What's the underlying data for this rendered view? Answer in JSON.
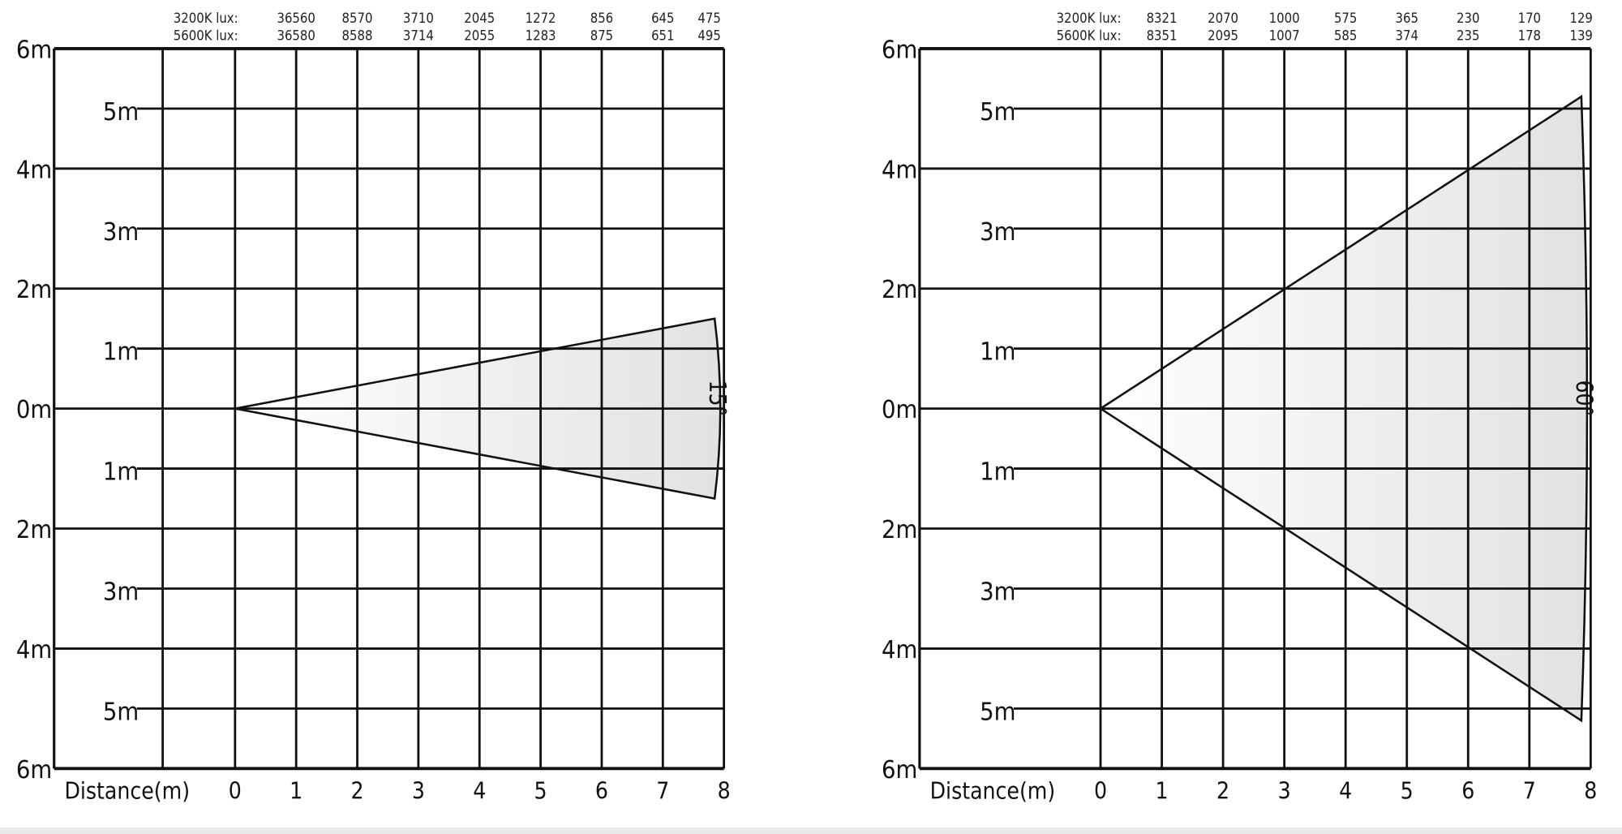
{
  "chart_data": [
    {
      "type": "beam-diagram",
      "beam_angle_label": "15°",
      "beam_angle_deg": 15,
      "xlabel": "Distance(m)",
      "x_ticks": [
        "0",
        "1",
        "2",
        "3",
        "4",
        "5",
        "6",
        "7",
        "8"
      ],
      "y_ticks_left": [
        "6m",
        "4m",
        "2m",
        "0m",
        "2m",
        "4m",
        "6m"
      ],
      "y_ticks_inner": [
        "5m",
        "3m",
        "1m",
        "1m",
        "3m",
        "5m"
      ],
      "xlim": [
        0,
        8
      ],
      "ylim": [
        -6,
        6
      ],
      "beam_half_width_at_8m": 1.5,
      "grid": true,
      "lux_rows": [
        {
          "label": "3200K lux:",
          "distances": [
            1,
            2,
            3,
            4,
            5,
            6,
            7,
            8
          ],
          "values": [
            36560,
            8570,
            3710,
            2045,
            1272,
            856,
            645,
            475
          ]
        },
        {
          "label": "5600K lux:",
          "distances": [
            1,
            2,
            3,
            4,
            5,
            6,
            7,
            8
          ],
          "values": [
            36580,
            8588,
            3714,
            2055,
            1283,
            875,
            651,
            495
          ]
        }
      ],
      "extra_left_column": true
    },
    {
      "type": "beam-diagram",
      "beam_angle_label": "60°",
      "beam_angle_deg": 60,
      "xlabel": "Distance(m)",
      "x_ticks": [
        "0",
        "1",
        "2",
        "3",
        "4",
        "5",
        "6",
        "7",
        "8"
      ],
      "y_ticks_left": [
        "6m",
        "4m",
        "2m",
        "0m",
        "2m",
        "4m",
        "6m"
      ],
      "y_ticks_inner": [
        "5m",
        "3m",
        "1m",
        "1m",
        "3m",
        "5m"
      ],
      "xlim": [
        0,
        8
      ],
      "ylim": [
        -6,
        6
      ],
      "beam_half_width_at_8m": 5.2,
      "grid": true,
      "lux_rows": [
        {
          "label": "3200K lux:",
          "distances": [
            1,
            2,
            3,
            4,
            5,
            6,
            7,
            8
          ],
          "values": [
            8321,
            2070,
            1000,
            575,
            365,
            230,
            170,
            129
          ]
        },
        {
          "label": "5600K lux:",
          "distances": [
            1,
            2,
            3,
            4,
            5,
            6,
            7,
            8
          ],
          "values": [
            8351,
            2095,
            1007,
            585,
            374,
            235,
            178,
            139
          ]
        }
      ],
      "extra_left_column": false
    }
  ],
  "colors": {
    "grid": "#111111",
    "beam_start": "#ffffff",
    "beam_end": "#e2e2e4"
  }
}
